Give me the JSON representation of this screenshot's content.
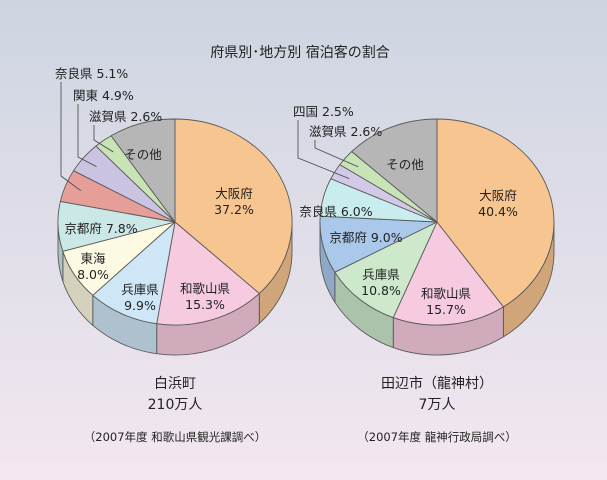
{
  "title": "府県別･地方別 宿泊客の割合",
  "colors": {
    "background_top": "#cdd5e1",
    "background_bottom": "#f3e7f0",
    "outline": "#5a5a5a",
    "text": "#222222"
  },
  "chart_data": [
    {
      "type": "pie",
      "three_d": true,
      "title": "白浜町",
      "subtitle": "210万人",
      "source": "（2007年度 和歌山県観光課調べ）",
      "slices": [
        {
          "name": "大阪府",
          "value": 37.2,
          "label": "37.2%",
          "color": "#f7c590"
        },
        {
          "name": "和歌山県",
          "value": 15.3,
          "label": "15.3%",
          "color": "#f6cbe0"
        },
        {
          "name": "兵庫県",
          "value": 9.9,
          "label": "9.9%",
          "color": "#cfe6f7"
        },
        {
          "name": "東海",
          "value": 8.0,
          "label": "8.0%",
          "color": "#fcfae2"
        },
        {
          "name": "京都府",
          "value": 7.8,
          "label": "7.8%",
          "color": "#cbe8e6"
        },
        {
          "name": "奈良県",
          "value": 5.1,
          "label": "5.1%",
          "color": "#e69e99"
        },
        {
          "name": "関東",
          "value": 4.9,
          "label": "4.9%",
          "color": "#cbc3e2"
        },
        {
          "name": "滋賀県",
          "value": 2.6,
          "label": "2.6%",
          "color": "#c8e3b6"
        },
        {
          "name": "その他",
          "value": 9.2,
          "color": "#b6b6b6"
        }
      ]
    },
    {
      "type": "pie",
      "three_d": true,
      "title": "田辺市（龍神村）",
      "subtitle": "7万人",
      "source": "（2007年度 龍神行政局調べ）",
      "slices": [
        {
          "name": "大阪府",
          "value": 40.4,
          "label": "40.4%",
          "color": "#f7c590"
        },
        {
          "name": "和歌山県",
          "value": 15.7,
          "label": "15.7%",
          "color": "#f6cbe0"
        },
        {
          "name": "兵庫県",
          "value": 10.8,
          "label": "10.8%",
          "color": "#cde8cb"
        },
        {
          "name": "京都府",
          "value": 9.0,
          "label": "9.0%",
          "color": "#a9c8ea"
        },
        {
          "name": "奈良県",
          "value": 6.0,
          "label": "6.0%",
          "color": "#c9ecee"
        },
        {
          "name": "四国",
          "value": 2.5,
          "label": "2.5%",
          "color": "#d1c9e6"
        },
        {
          "name": "滋賀県",
          "value": 2.6,
          "label": "2.6%",
          "color": "#c8e3b6"
        },
        {
          "name": "その他",
          "value": 13.0,
          "color": "#b6b6b6"
        }
      ]
    }
  ]
}
